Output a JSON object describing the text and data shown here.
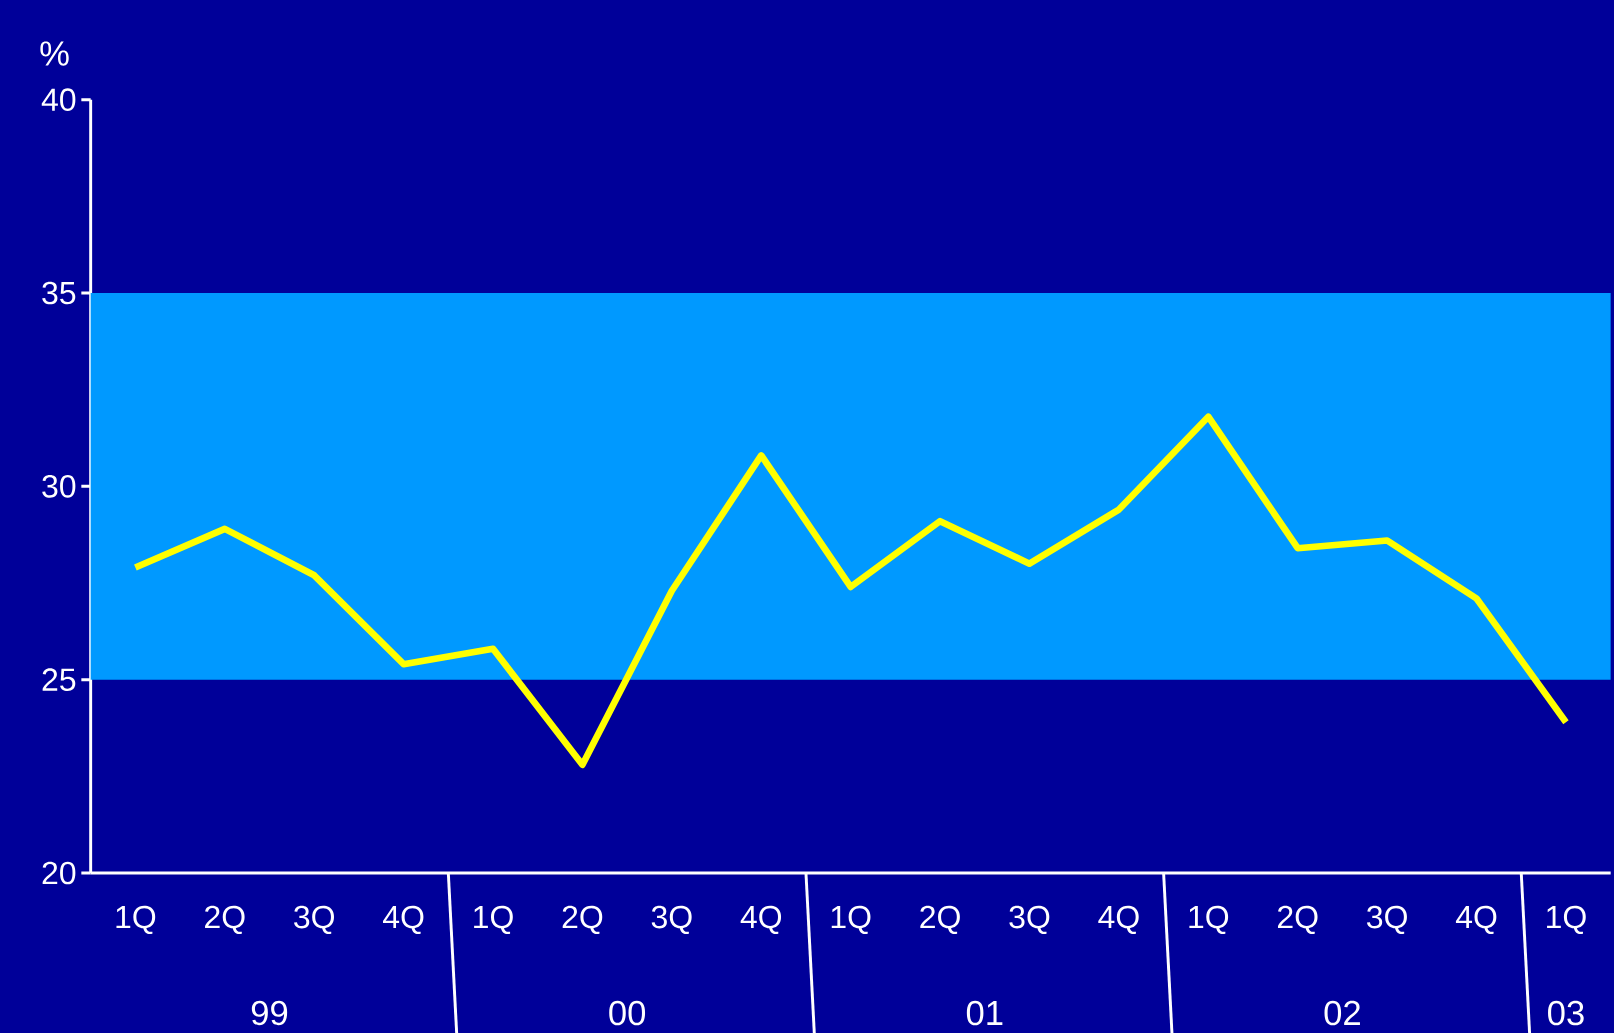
{
  "chart_data": {
    "type": "line",
    "ylabel": "%",
    "categories": [
      "1Q",
      "2Q",
      "3Q",
      "4Q",
      "1Q",
      "2Q",
      "3Q",
      "4Q",
      "1Q",
      "2Q",
      "3Q",
      "4Q",
      "1Q",
      "2Q",
      "3Q",
      "4Q",
      "1Q"
    ],
    "series": [
      {
        "color": "#ffff00",
        "values": [
          27.9,
          28.9,
          27.7,
          25.4,
          25.8,
          22.8,
          27.3,
          30.8,
          27.4,
          29.1,
          28.0,
          29.4,
          31.8,
          28.4,
          28.6,
          27.1,
          23.9
        ]
      }
    ],
    "ylim": [
      20,
      40
    ],
    "yticks": [
      20,
      25,
      30,
      35,
      40
    ],
    "bands": [
      {
        "axis": "y",
        "from": 25,
        "to": 35,
        "color": "#0099ff"
      }
    ],
    "annotations": [
      "99",
      "00",
      "01",
      "02",
      "03"
    ]
  }
}
